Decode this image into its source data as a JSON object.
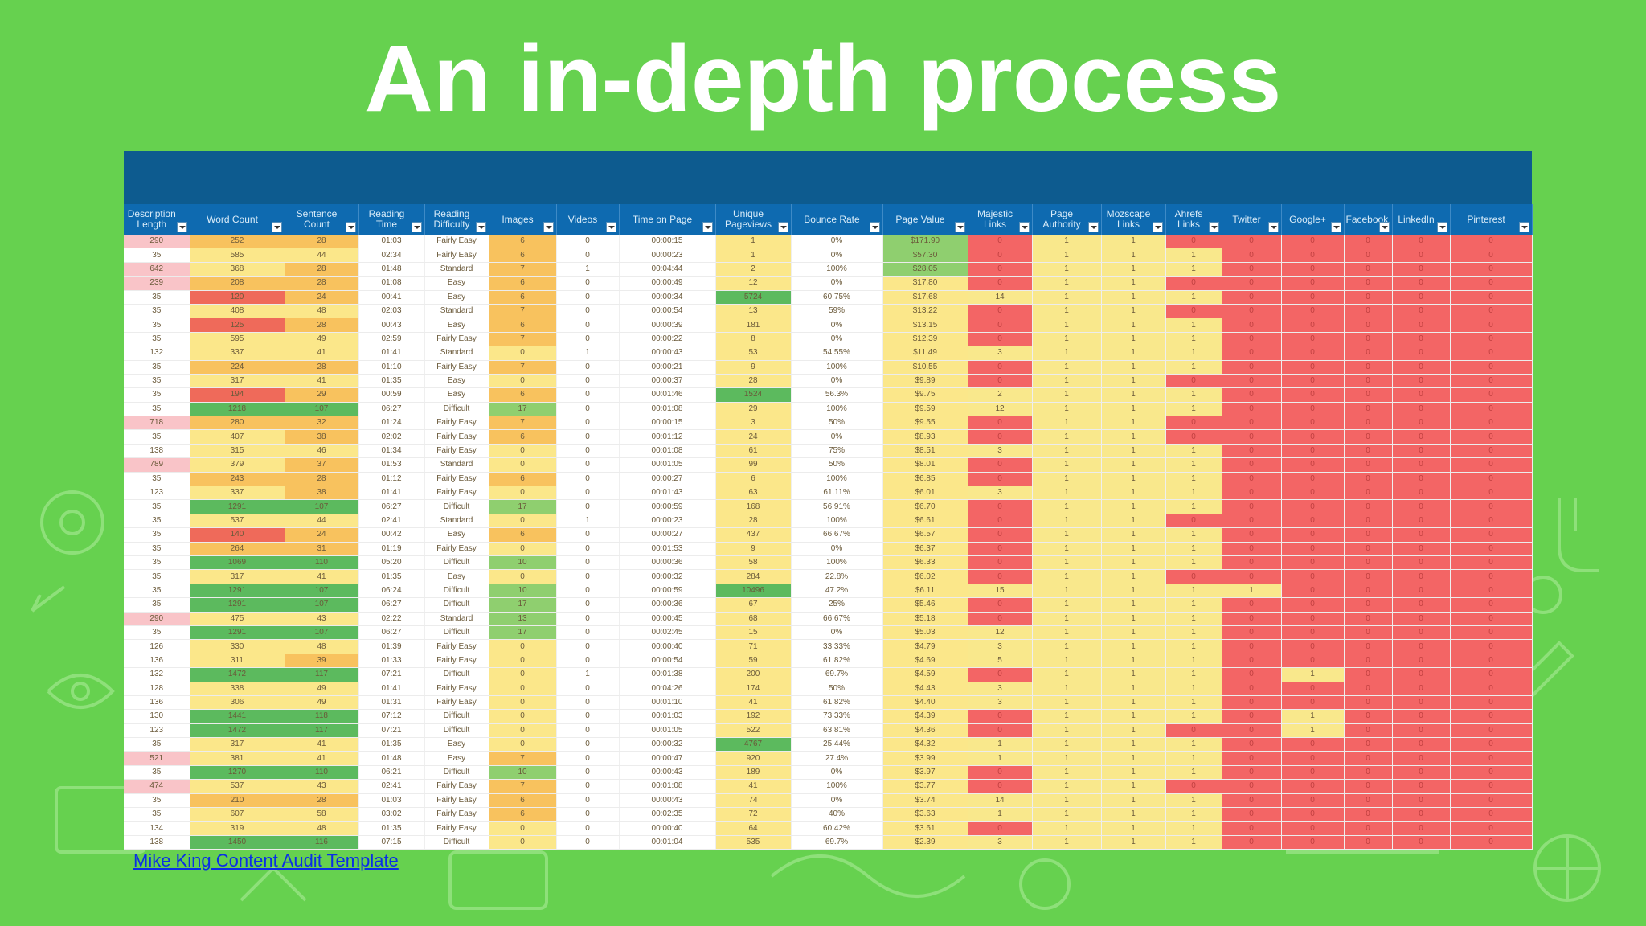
{
  "slide": {
    "title": "An in-depth process",
    "source_link": "Mike King Content Audit Template"
  },
  "colors": {
    "background": "#66d14f",
    "header_banner": "#0d5b8f",
    "header_row": "#0e6ab0",
    "red": "#f36565",
    "yellow": "#f9e88c",
    "green": "#5cba5e"
  },
  "columns": [
    "Description Length",
    "Word Count",
    "Sentence Count",
    "Reading Time",
    "Reading Difficulty",
    "Images",
    "Videos",
    "Time on Page",
    "Unique Pageviews",
    "Bounce Rate",
    "Page Value",
    "Majestic Links",
    "Page Authority",
    "Mozscape Links",
    "Ahrefs Links",
    "Twitter",
    "Google+",
    "Facebook",
    "LinkedIn",
    "Pinterest"
  ],
  "rows": [
    [
      "290",
      "252",
      "28",
      "01:03",
      "Fairly Easy",
      "6",
      "0",
      "00:00:15",
      "1",
      "0%",
      "$171.90",
      "0",
      "1",
      "1",
      "0",
      "0",
      "0",
      "0",
      "0",
      "0"
    ],
    [
      "35",
      "585",
      "44",
      "02:34",
      "Fairly Easy",
      "6",
      "0",
      "00:00:23",
      "1",
      "0%",
      "$57.30",
      "0",
      "1",
      "1",
      "1",
      "0",
      "0",
      "0",
      "0",
      "0"
    ],
    [
      "642",
      "368",
      "28",
      "01:48",
      "Standard",
      "7",
      "1",
      "00:04:44",
      "2",
      "100%",
      "$28.05",
      "0",
      "1",
      "1",
      "1",
      "0",
      "0",
      "0",
      "0",
      "0"
    ],
    [
      "239",
      "208",
      "28",
      "01:08",
      "Easy",
      "6",
      "0",
      "00:00:49",
      "12",
      "0%",
      "$17.80",
      "0",
      "1",
      "1",
      "0",
      "0",
      "0",
      "0",
      "0",
      "0"
    ],
    [
      "35",
      "120",
      "24",
      "00:41",
      "Easy",
      "6",
      "0",
      "00:00:34",
      "5724",
      "60.75%",
      "$17.68",
      "14",
      "1",
      "1",
      "1",
      "0",
      "0",
      "0",
      "0",
      "0"
    ],
    [
      "35",
      "408",
      "48",
      "02:03",
      "Standard",
      "7",
      "0",
      "00:00:54",
      "13",
      "59%",
      "$13.22",
      "0",
      "1",
      "1",
      "0",
      "0",
      "0",
      "0",
      "0",
      "0"
    ],
    [
      "35",
      "125",
      "28",
      "00:43",
      "Easy",
      "6",
      "0",
      "00:00:39",
      "181",
      "0%",
      "$13.15",
      "0",
      "1",
      "1",
      "1",
      "0",
      "0",
      "0",
      "0",
      "0"
    ],
    [
      "35",
      "595",
      "49",
      "02:59",
      "Fairly Easy",
      "7",
      "0",
      "00:00:22",
      "8",
      "0%",
      "$12.39",
      "0",
      "1",
      "1",
      "1",
      "0",
      "0",
      "0",
      "0",
      "0"
    ],
    [
      "132",
      "337",
      "41",
      "01:41",
      "Standard",
      "0",
      "1",
      "00:00:43",
      "53",
      "54.55%",
      "$11.49",
      "3",
      "1",
      "1",
      "1",
      "0",
      "0",
      "0",
      "0",
      "0"
    ],
    [
      "35",
      "224",
      "28",
      "01:10",
      "Fairly Easy",
      "7",
      "0",
      "00:00:21",
      "9",
      "100%",
      "$10.55",
      "0",
      "1",
      "1",
      "1",
      "0",
      "0",
      "0",
      "0",
      "0"
    ],
    [
      "35",
      "317",
      "41",
      "01:35",
      "Easy",
      "0",
      "0",
      "00:00:37",
      "28",
      "0%",
      "$9.89",
      "0",
      "1",
      "1",
      "0",
      "0",
      "0",
      "0",
      "0",
      "0"
    ],
    [
      "35",
      "194",
      "29",
      "00:59",
      "Easy",
      "6",
      "0",
      "00:01:46",
      "1524",
      "56.3%",
      "$9.75",
      "2",
      "1",
      "1",
      "1",
      "0",
      "0",
      "0",
      "0",
      "0"
    ],
    [
      "35",
      "1218",
      "107",
      "06:27",
      "Difficult",
      "17",
      "0",
      "00:01:08",
      "29",
      "100%",
      "$9.59",
      "12",
      "1",
      "1",
      "1",
      "0",
      "0",
      "0",
      "0",
      "0"
    ],
    [
      "718",
      "280",
      "32",
      "01:24",
      "Fairly Easy",
      "7",
      "0",
      "00:00:15",
      "3",
      "50%",
      "$9.55",
      "0",
      "1",
      "1",
      "0",
      "0",
      "0",
      "0",
      "0",
      "0"
    ],
    [
      "35",
      "407",
      "38",
      "02:02",
      "Fairly Easy",
      "6",
      "0",
      "00:01:12",
      "24",
      "0%",
      "$8.93",
      "0",
      "1",
      "1",
      "0",
      "0",
      "0",
      "0",
      "0",
      "0"
    ],
    [
      "138",
      "315",
      "46",
      "01:34",
      "Fairly Easy",
      "0",
      "0",
      "00:01:08",
      "61",
      "75%",
      "$8.51",
      "3",
      "1",
      "1",
      "1",
      "0",
      "0",
      "0",
      "0",
      "0"
    ],
    [
      "789",
      "379",
      "37",
      "01:53",
      "Standard",
      "0",
      "0",
      "00:01:05",
      "99",
      "50%",
      "$8.01",
      "0",
      "1",
      "1",
      "1",
      "0",
      "0",
      "0",
      "0",
      "0"
    ],
    [
      "35",
      "243",
      "28",
      "01:12",
      "Fairly Easy",
      "6",
      "0",
      "00:00:27",
      "6",
      "100%",
      "$6.85",
      "0",
      "1",
      "1",
      "1",
      "0",
      "0",
      "0",
      "0",
      "0"
    ],
    [
      "123",
      "337",
      "38",
      "01:41",
      "Fairly Easy",
      "0",
      "0",
      "00:01:43",
      "63",
      "61.11%",
      "$6.01",
      "3",
      "1",
      "1",
      "1",
      "0",
      "0",
      "0",
      "0",
      "0"
    ],
    [
      "35",
      "1291",
      "107",
      "06:27",
      "Difficult",
      "17",
      "0",
      "00:00:59",
      "168",
      "56.91%",
      "$6.70",
      "0",
      "1",
      "1",
      "1",
      "0",
      "0",
      "0",
      "0",
      "0"
    ],
    [
      "35",
      "537",
      "44",
      "02:41",
      "Standard",
      "0",
      "1",
      "00:00:23",
      "28",
      "100%",
      "$6.61",
      "0",
      "1",
      "1",
      "0",
      "0",
      "0",
      "0",
      "0",
      "0"
    ],
    [
      "35",
      "140",
      "24",
      "00:42",
      "Easy",
      "6",
      "0",
      "00:00:27",
      "437",
      "66.67%",
      "$6.57",
      "0",
      "1",
      "1",
      "1",
      "0",
      "0",
      "0",
      "0",
      "0"
    ],
    [
      "35",
      "264",
      "31",
      "01:19",
      "Fairly Easy",
      "0",
      "0",
      "00:01:53",
      "9",
      "0%",
      "$6.37",
      "0",
      "1",
      "1",
      "1",
      "0",
      "0",
      "0",
      "0",
      "0"
    ],
    [
      "35",
      "1069",
      "110",
      "05:20",
      "Difficult",
      "10",
      "0",
      "00:00:36",
      "58",
      "100%",
      "$6.33",
      "0",
      "1",
      "1",
      "1",
      "0",
      "0",
      "0",
      "0",
      "0"
    ],
    [
      "35",
      "317",
      "41",
      "01:35",
      "Easy",
      "0",
      "0",
      "00:00:32",
      "284",
      "22.8%",
      "$6.02",
      "0",
      "1",
      "1",
      "0",
      "0",
      "0",
      "0",
      "0",
      "0"
    ],
    [
      "35",
      "1291",
      "107",
      "06:24",
      "Difficult",
      "10",
      "0",
      "00:00:59",
      "10496",
      "47.2%",
      "$6.11",
      "15",
      "1",
      "1",
      "1",
      "1",
      "0",
      "0",
      "0",
      "0"
    ],
    [
      "35",
      "1291",
      "107",
      "06:27",
      "Difficult",
      "17",
      "0",
      "00:00:36",
      "67",
      "25%",
      "$5.46",
      "0",
      "1",
      "1",
      "1",
      "0",
      "0",
      "0",
      "0",
      "0"
    ],
    [
      "290",
      "475",
      "43",
      "02:22",
      "Standard",
      "13",
      "0",
      "00:00:45",
      "68",
      "66.67%",
      "$5.18",
      "0",
      "1",
      "1",
      "1",
      "0",
      "0",
      "0",
      "0",
      "0"
    ],
    [
      "35",
      "1291",
      "107",
      "06:27",
      "Difficult",
      "17",
      "0",
      "00:02:45",
      "15",
      "0%",
      "$5.03",
      "12",
      "1",
      "1",
      "1",
      "0",
      "0",
      "0",
      "0",
      "0"
    ],
    [
      "126",
      "330",
      "48",
      "01:39",
      "Fairly Easy",
      "0",
      "0",
      "00:00:40",
      "71",
      "33.33%",
      "$4.79",
      "3",
      "1",
      "1",
      "1",
      "0",
      "0",
      "0",
      "0",
      "0"
    ],
    [
      "136",
      "311",
      "39",
      "01:33",
      "Fairly Easy",
      "0",
      "0",
      "00:00:54",
      "59",
      "61.82%",
      "$4.69",
      "5",
      "1",
      "1",
      "1",
      "0",
      "0",
      "0",
      "0",
      "0"
    ],
    [
      "132",
      "1472",
      "117",
      "07:21",
      "Difficult",
      "0",
      "1",
      "00:01:38",
      "200",
      "69.7%",
      "$4.59",
      "0",
      "1",
      "1",
      "1",
      "0",
      "1",
      "0",
      "0",
      "0"
    ],
    [
      "128",
      "338",
      "49",
      "01:41",
      "Fairly Easy",
      "0",
      "0",
      "00:04:26",
      "174",
      "50%",
      "$4.43",
      "3",
      "1",
      "1",
      "1",
      "0",
      "0",
      "0",
      "0",
      "0"
    ],
    [
      "136",
      "306",
      "49",
      "01:31",
      "Fairly Easy",
      "0",
      "0",
      "00:01:10",
      "41",
      "61.82%",
      "$4.40",
      "3",
      "1",
      "1",
      "1",
      "0",
      "0",
      "0",
      "0",
      "0"
    ],
    [
      "130",
      "1441",
      "118",
      "07:12",
      "Difficult",
      "0",
      "0",
      "00:01:03",
      "192",
      "73.33%",
      "$4.39",
      "0",
      "1",
      "1",
      "1",
      "0",
      "1",
      "0",
      "0",
      "0"
    ],
    [
      "123",
      "1472",
      "117",
      "07:21",
      "Difficult",
      "0",
      "0",
      "00:01:05",
      "522",
      "63.81%",
      "$4.36",
      "0",
      "1",
      "1",
      "0",
      "0",
      "1",
      "0",
      "0",
      "0"
    ],
    [
      "35",
      "317",
      "41",
      "01:35",
      "Easy",
      "0",
      "0",
      "00:00:32",
      "4767",
      "25.44%",
      "$4.32",
      "1",
      "1",
      "1",
      "1",
      "0",
      "0",
      "0",
      "0",
      "0"
    ],
    [
      "521",
      "381",
      "41",
      "01:48",
      "Easy",
      "7",
      "0",
      "00:00:47",
      "920",
      "27.4%",
      "$3.99",
      "1",
      "1",
      "1",
      "1",
      "0",
      "0",
      "0",
      "0",
      "0"
    ],
    [
      "35",
      "1270",
      "110",
      "06:21",
      "Difficult",
      "10",
      "0",
      "00:00:43",
      "189",
      "0%",
      "$3.97",
      "0",
      "1",
      "1",
      "1",
      "0",
      "0",
      "0",
      "0",
      "0"
    ],
    [
      "474",
      "537",
      "43",
      "02:41",
      "Fairly Easy",
      "7",
      "0",
      "00:01:08",
      "41",
      "100%",
      "$3.77",
      "0",
      "1",
      "1",
      "0",
      "0",
      "0",
      "0",
      "0",
      "0"
    ],
    [
      "35",
      "210",
      "28",
      "01:03",
      "Fairly Easy",
      "6",
      "0",
      "00:00:43",
      "74",
      "0%",
      "$3.74",
      "14",
      "1",
      "1",
      "1",
      "0",
      "0",
      "0",
      "0",
      "0"
    ],
    [
      "35",
      "607",
      "58",
      "03:02",
      "Fairly Easy",
      "6",
      "0",
      "00:02:35",
      "72",
      "40%",
      "$3.63",
      "1",
      "1",
      "1",
      "1",
      "0",
      "0",
      "0",
      "0",
      "0"
    ],
    [
      "134",
      "319",
      "48",
      "01:35",
      "Fairly Easy",
      "0",
      "0",
      "00:00:40",
      "64",
      "60.42%",
      "$3.61",
      "0",
      "1",
      "1",
      "1",
      "0",
      "0",
      "0",
      "0",
      "0"
    ],
    [
      "138",
      "1450",
      "116",
      "07:15",
      "Difficult",
      "0",
      "0",
      "00:01:04",
      "535",
      "69.7%",
      "$2.39",
      "3",
      "1",
      "1",
      "1",
      "0",
      "0",
      "0",
      "0",
      "0"
    ]
  ]
}
